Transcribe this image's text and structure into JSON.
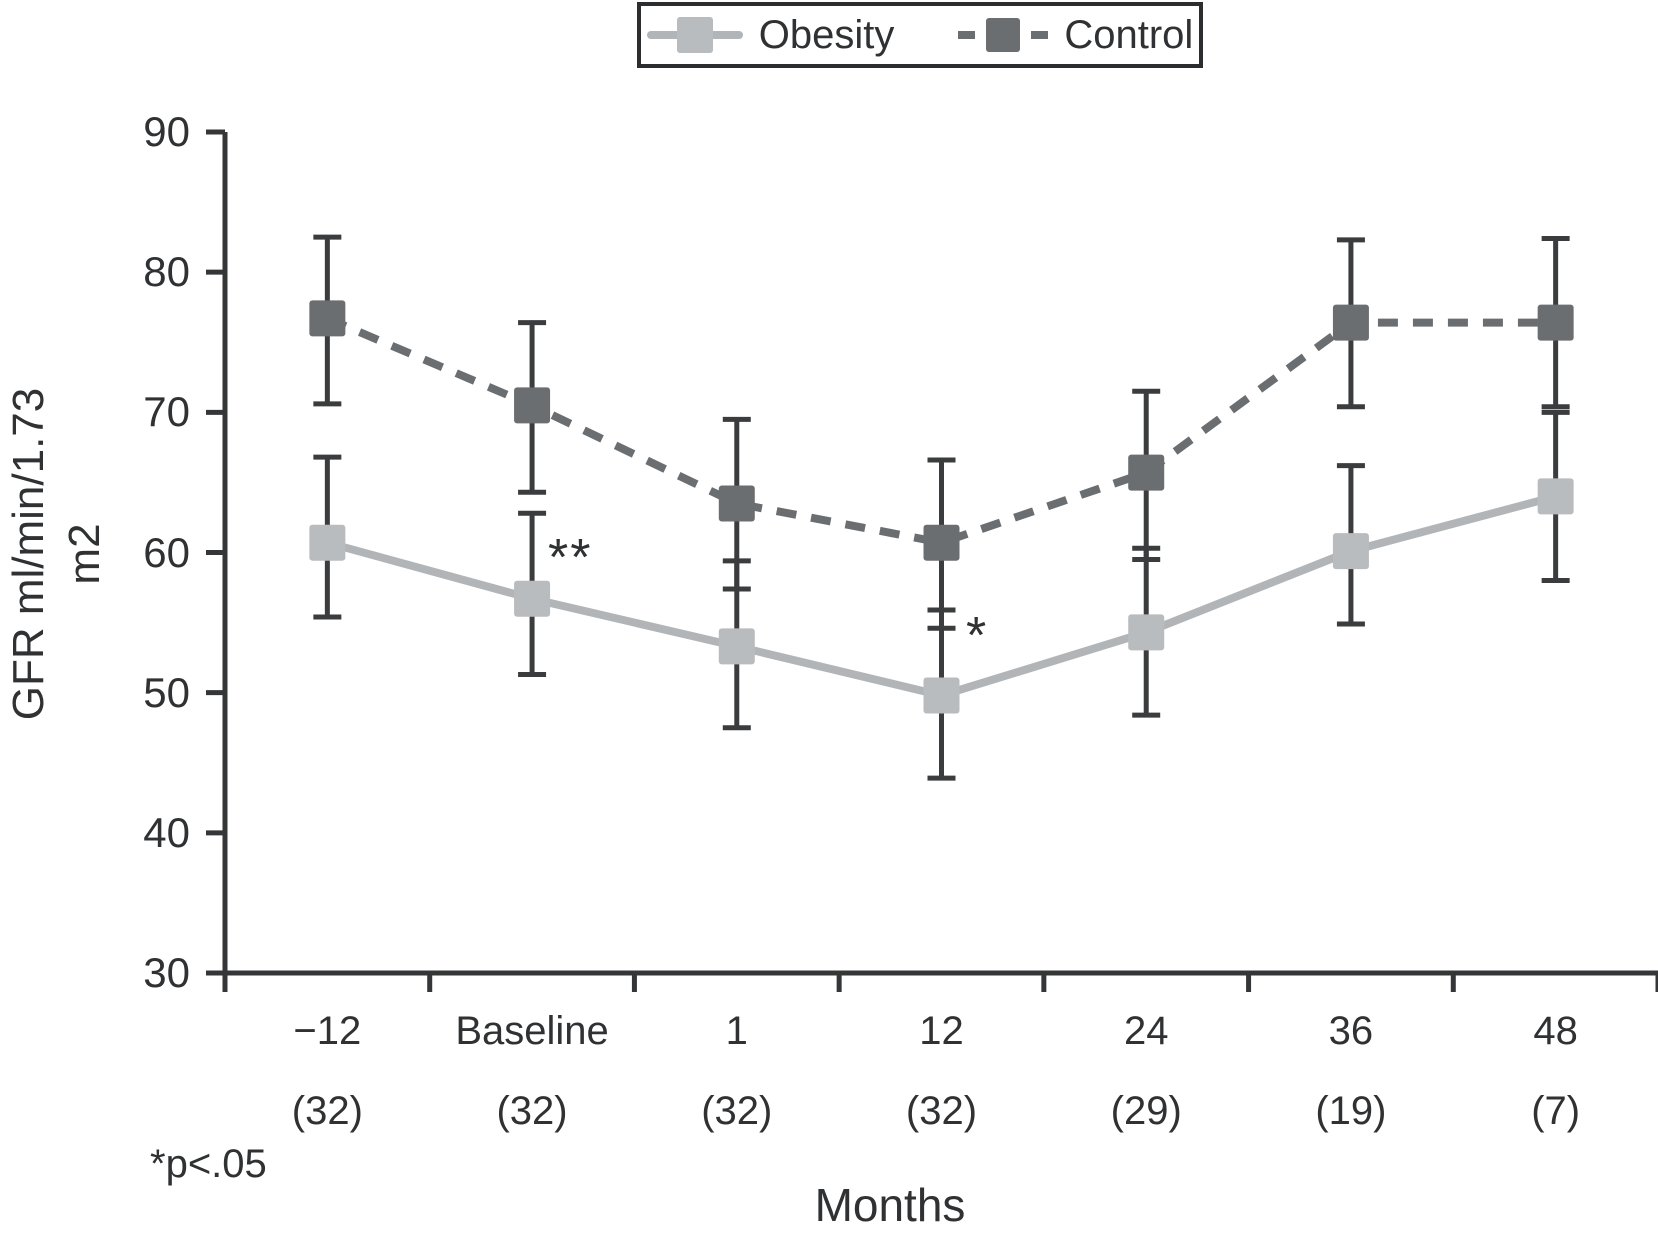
{
  "legend": {
    "items": [
      {
        "label": "Obesity",
        "marker": "light-square-solid-line"
      },
      {
        "label": "Control",
        "marker": "dark-square-dashed-line"
      }
    ]
  },
  "y_axis": {
    "title_line1": "GFR ml/min/1.73",
    "title_line2": "m2",
    "ticks": [
      90,
      80,
      70,
      60,
      50,
      40,
      30
    ],
    "min": 30,
    "max": 90
  },
  "x_axis": {
    "title": "Months",
    "categories": [
      "−12",
      "Baseline",
      "1",
      "12",
      "24",
      "36",
      "48"
    ],
    "counts": [
      "(32)",
      "(32)",
      "(32)",
      "(32)",
      "(29)",
      "(19)",
      "(7)"
    ]
  },
  "annotations": {
    "baseline_stars": "**",
    "month12_star": "*",
    "significance_note": "*p<.05"
  },
  "colors": {
    "obesity_marker": "#b9bcbe",
    "obesity_line": "#b2b5b7",
    "control": "#6b6e70",
    "error_bar": "#3a3c3d",
    "axis": "#343637",
    "text": "#2f3133"
  },
  "chart_data": {
    "type": "line",
    "categories": [
      "-12",
      "Baseline",
      "1",
      "12",
      "24",
      "36",
      "48"
    ],
    "patient_counts": [
      32,
      32,
      32,
      32,
      29,
      19,
      7
    ],
    "series": [
      {
        "name": "Obesity",
        "line_style": "solid",
        "values": [
          60.7,
          56.7,
          53.3,
          49.8,
          54.3,
          60.1,
          64.0
        ],
        "error_low": [
          55.4,
          51.3,
          47.5,
          43.9,
          48.4,
          54.9,
          58.0
        ],
        "error_high": [
          66.8,
          62.8,
          59.4,
          55.9,
          60.3,
          66.2,
          70.0
        ]
      },
      {
        "name": "Control",
        "line_style": "dashed",
        "values": [
          76.7,
          70.5,
          63.5,
          60.7,
          65.7,
          76.4,
          76.4
        ],
        "error_low": [
          70.6,
          64.3,
          57.4,
          54.6,
          59.5,
          70.4,
          70.4
        ],
        "error_high": [
          82.5,
          76.4,
          69.5,
          66.6,
          71.5,
          82.3,
          82.4
        ]
      }
    ],
    "title": "",
    "xlabel": "Months",
    "ylabel": "GFR ml/min/1.73 m2",
    "ylim": [
      30,
      90
    ],
    "grid": false,
    "legend_position": "top-center",
    "annotations": [
      {
        "text": "**",
        "category": "Baseline",
        "series": "Obesity",
        "position": "upper-right-of-point"
      },
      {
        "text": "*",
        "category": "12",
        "series": "Obesity",
        "position": "upper-right-of-point"
      }
    ],
    "footnote": "*p<.05"
  }
}
